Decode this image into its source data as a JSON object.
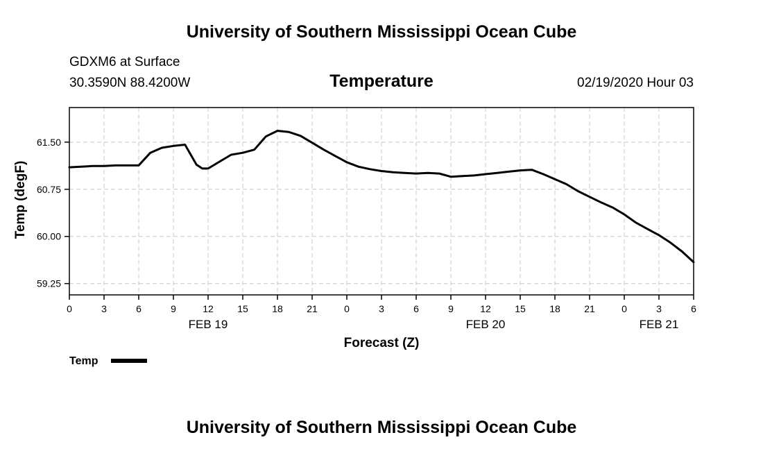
{
  "header": {
    "title": "University of Southern Mississippi Ocean Cube",
    "station": "GDXM6 at Surface",
    "location": "30.3590N 88.4200W",
    "date_label": "02/19/2020 Hour 03"
  },
  "footer": {
    "title": "University of Southern Mississippi Ocean Cube"
  },
  "colors": {
    "line": "#000000",
    "grid": "#c8c8c8",
    "background": "#ffffff"
  },
  "chart_data": {
    "type": "line",
    "title": "Temperature",
    "xlabel": "Forecast (Z)",
    "ylabel": "Temp (degF)",
    "xlim": [
      0,
      54
    ],
    "ylim": [
      59.07,
      62.05
    ],
    "grid": true,
    "legend_position": "bottom-left",
    "x_ticks": [
      0,
      3,
      6,
      9,
      12,
      15,
      18,
      21,
      24,
      27,
      30,
      33,
      36,
      39,
      42,
      45,
      48,
      51,
      54
    ],
    "x_tick_labels": [
      "0",
      "3",
      "6",
      "9",
      "12",
      "15",
      "18",
      "21",
      "0",
      "3",
      "6",
      "9",
      "12",
      "15",
      "18",
      "21",
      "0",
      "3",
      "6"
    ],
    "y_ticks": [
      59.25,
      60.0,
      60.75,
      61.5
    ],
    "y_tick_labels": [
      "59.25",
      "60.00",
      "60.75",
      "61.50"
    ],
    "date_labels": [
      {
        "x": 12,
        "label": "FEB 19"
      },
      {
        "x": 36,
        "label": "FEB 20"
      },
      {
        "x": 51,
        "label": "FEB 21"
      }
    ],
    "series": [
      {
        "name": "Temp",
        "x": [
          0,
          1,
          2,
          3,
          4,
          5,
          6,
          7,
          8,
          9,
          10,
          11,
          11.5,
          12,
          13,
          14,
          15,
          16,
          17,
          18,
          19,
          20,
          21,
          22,
          23,
          24,
          25,
          26,
          27,
          28,
          29,
          30,
          31,
          32,
          33,
          34,
          35,
          36,
          37,
          38,
          39,
          40,
          41,
          42,
          43,
          44,
          45,
          46,
          47,
          48,
          49,
          50,
          51,
          52,
          53,
          54
        ],
        "y": [
          61.1,
          61.11,
          61.12,
          61.12,
          61.13,
          61.13,
          61.13,
          61.33,
          61.41,
          61.44,
          61.46,
          61.14,
          61.08,
          61.08,
          61.19,
          61.3,
          61.33,
          61.38,
          61.59,
          61.68,
          61.66,
          61.6,
          61.49,
          61.38,
          61.28,
          61.18,
          61.11,
          61.07,
          61.04,
          61.02,
          61.01,
          61.0,
          61.01,
          61.0,
          60.95,
          60.96,
          60.97,
          60.99,
          61.01,
          61.03,
          61.05,
          61.06,
          60.99,
          60.91,
          60.83,
          60.72,
          60.63,
          60.54,
          60.46,
          60.35,
          60.22,
          60.12,
          60.02,
          59.9,
          59.76,
          59.59
        ]
      }
    ]
  }
}
